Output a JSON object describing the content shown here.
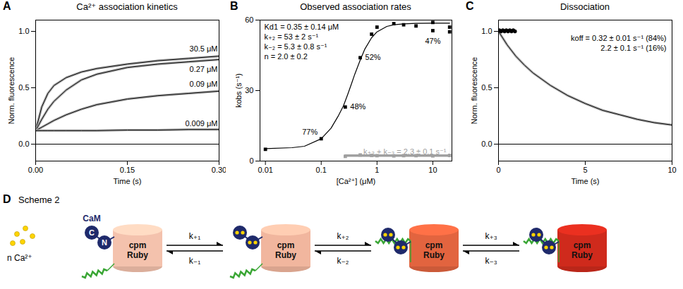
{
  "chart_data": [
    {
      "panel": "A",
      "type": "line",
      "title": "Ca²⁺ association kinetics",
      "x_label": "Time (s)",
      "y_label": "Norm. fluorescence",
      "x": [
        0,
        0.01,
        0.02,
        0.03,
        0.05,
        0.075,
        0.1,
        0.15,
        0.2,
        0.25,
        0.3
      ],
      "xlim": [
        0,
        0.3
      ],
      "xticks": [
        {
          "value": 0,
          "label": "0.00"
        },
        0.15,
        {
          "value": 0.3,
          "label": "0.30"
        }
      ],
      "ylim": [
        -0.15,
        1.1
      ],
      "yticks": [
        {
          "value": 0,
          "label": "0.0"
        },
        0.5,
        {
          "value": 1,
          "label": "1.0"
        }
      ],
      "series": [
        {
          "name": "30.5 μM",
          "color": "#b3b3b3",
          "values": [
            0.12,
            0.33,
            0.45,
            0.52,
            0.59,
            0.64,
            0.67,
            0.71,
            0.74,
            0.76,
            0.78
          ]
        },
        {
          "name": "0.27 μM",
          "color": "#b3b3b3",
          "values": [
            0.12,
            0.22,
            0.31,
            0.38,
            0.48,
            0.57,
            0.62,
            0.68,
            0.71,
            0.73,
            0.75
          ]
        },
        {
          "name": "0.09 μM",
          "color": "#b3b3b3",
          "values": [
            0.12,
            0.15,
            0.18,
            0.21,
            0.26,
            0.31,
            0.35,
            0.4,
            0.43,
            0.45,
            0.47
          ]
        },
        {
          "name": "0.009 μM",
          "color": "#b3b3b3",
          "values": [
            0.12,
            0.12,
            0.12,
            0.12,
            0.12,
            0.12,
            0.12,
            0.125,
            0.125,
            0.13,
            0.13
          ]
        },
        {
          "name": null,
          "color": "#000000",
          "values": [
            0,
            0,
            0,
            0,
            0,
            0,
            0,
            0,
            0,
            0,
            0
          ]
        }
      ]
    },
    {
      "panel": "B",
      "type": "scatter",
      "title": "Observed association rates",
      "x_label": "[Ca²⁺] (μM)",
      "y_label": "kobs (s⁻¹)",
      "log": "x",
      "xlim": [
        0.008,
        22
      ],
      "xticks": [
        0.01,
        0.1,
        1,
        10
      ],
      "ylim": [
        0,
        60
      ],
      "yticks": [
        0,
        30,
        60
      ],
      "fit_parameters": [
        "Kd1 = 0.35 ± 0.14 μM",
        "k₊₂ = 53 ± 2 s⁻¹",
        "k₋₂ = 5.3 ± 0.8 s⁻¹",
        "n = 2.0 ± 0.2"
      ],
      "secondary_fit": {
        "text": "k₊₃ + k₋₃ = 2.3 ± 0.1 s⁻¹",
        "color": "#a0a0a0"
      },
      "series": [
        {
          "name": null,
          "type": "scatter",
          "marker": "square",
          "color": "#000000",
          "x": [
            0.01,
            0.1,
            0.27,
            0.5,
            0.8,
            1,
            2,
            3,
            5,
            10,
            10,
            20,
            20
          ],
          "values": [
            5,
            9.5,
            23,
            44,
            54,
            57,
            58.5,
            58,
            57.5,
            59,
            55.5,
            57,
            55
          ],
          "point_labels": [
            null,
            "77%",
            "48%",
            "52%",
            null,
            null,
            null,
            null,
            null,
            null,
            "47%",
            null,
            null
          ]
        },
        {
          "name": null,
          "type": "line",
          "color": "#000000",
          "x": [
            0.01,
            0.03,
            0.05,
            0.1,
            0.15,
            0.2,
            0.25,
            0.3,
            0.35,
            0.4,
            0.5,
            0.6,
            0.8,
            1,
            1.5,
            2,
            3,
            5,
            10,
            20
          ],
          "values": [
            5.3,
            5.7,
            6.3,
            9.5,
            14,
            19,
            23.5,
            28.5,
            33,
            37,
            43,
            47.5,
            52.5,
            55,
            57.3,
            58,
            58.4,
            58.6,
            58.7,
            58.7
          ]
        },
        {
          "name": null,
          "type": "scatter",
          "marker": "square",
          "color": "#a0a0a0",
          "x": [
            0.27,
            0.5,
            0.8,
            1,
            2,
            3,
            5,
            10,
            20
          ],
          "values": [
            2.0,
            2.6,
            2.4,
            2.3,
            2.2,
            2.3,
            2.3,
            2.2,
            2.4
          ]
        },
        {
          "name": null,
          "type": "line",
          "color": "#a0a0a0",
          "x": [
            0.27,
            20
          ],
          "values": [
            2.3,
            2.3
          ]
        }
      ]
    },
    {
      "panel": "C",
      "type": "line",
      "title": "Dissociation",
      "x_label": "Time (s)",
      "y_label": "Norm. fluorescence",
      "xlim": [
        0,
        10
      ],
      "xticks": [
        0,
        5,
        10
      ],
      "ylim": [
        -0.15,
        1.1
      ],
      "yticks": [
        {
          "value": 0,
          "label": "0.0"
        },
        0.5,
        {
          "value": 1,
          "label": "1.0"
        }
      ],
      "fit_parameters": [
        "koff = 0.32 ± 0.01 s⁻¹ (84%)",
        "2.2 ± 0.1 s⁻¹ (16%)"
      ],
      "series": [
        {
          "name": null,
          "color": "#b3b3b3",
          "x": [
            0,
            0.5,
            1,
            1.5,
            2,
            3,
            4,
            5,
            6,
            7,
            8,
            9,
            10
          ],
          "values": [
            1,
            0.88,
            0.78,
            0.7,
            0.63,
            0.52,
            0.43,
            0.36,
            0.3,
            0.26,
            0.22,
            0.19,
            0.17
          ]
        },
        {
          "name": null,
          "type": "scatter",
          "marker": "circle",
          "color": "#000000",
          "x": [
            0.05,
            0.15,
            0.25,
            0.35,
            0.45,
            0.55,
            0.65,
            0.75,
            0.85,
            0.95
          ],
          "values": [
            1.01,
            1.0,
            1.01,
            1.0,
            1.01,
            1.0,
            1.01,
            1.0,
            1.01,
            1.0
          ]
        },
        {
          "name": null,
          "color": "#000000",
          "x": [
            0,
            10
          ],
          "values": [
            0,
            0
          ]
        }
      ]
    }
  ],
  "scheme": {
    "panel": "D",
    "title": "Scheme 2",
    "ligand": "n Ca²⁺",
    "protein": "CaM",
    "lobe_labels": [
      "C",
      "N"
    ],
    "sensor_labels": [
      "cpm Ruby",
      "cpm Ruby",
      "cpm Ruby",
      "cpm Ruby"
    ],
    "rates": [
      {
        "forward": "k₊₁",
        "reverse": "k₋₁"
      },
      {
        "forward": "k₊₂",
        "reverse": "k₋₂"
      },
      {
        "forward": "k₊₃",
        "reverse": "k₋₃"
      }
    ]
  }
}
